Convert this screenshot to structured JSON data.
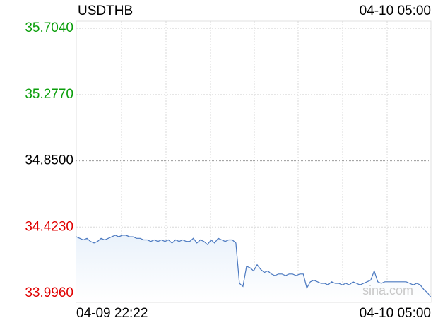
{
  "chart_data": {
    "type": "line",
    "title": "USDTHB",
    "timestamp": "04-10 05:00",
    "watermark": "sina.com",
    "x_labels": [
      "04-09 22:22",
      "04-10 05:00"
    ],
    "color": "#4a78c0",
    "fill": "#eaf2fb",
    "ylim": [
      33.937,
      35.75
    ],
    "yticks": [
      {
        "value": 35.704,
        "label": "35.7040"
      },
      {
        "value": 35.277,
        "label": "35.2770"
      },
      {
        "value": 34.85,
        "label": "34.8500"
      },
      {
        "value": 34.423,
        "label": "34.4230"
      },
      {
        "value": 33.996,
        "label": "33.9960"
      }
    ],
    "ytick_colors": [
      "#0a9e0a",
      "#0a9e0a",
      "#000000",
      "#e00000",
      "#e00000"
    ],
    "grid": true,
    "values": [
      34.36,
      34.35,
      34.34,
      34.35,
      34.33,
      34.32,
      34.33,
      34.35,
      34.34,
      34.35,
      34.36,
      34.37,
      34.36,
      34.37,
      34.37,
      34.36,
      34.36,
      34.35,
      34.35,
      34.34,
      34.34,
      34.33,
      34.34,
      34.33,
      34.34,
      34.33,
      34.34,
      34.32,
      34.34,
      34.33,
      34.34,
      34.33,
      34.33,
      34.35,
      34.32,
      34.34,
      34.33,
      34.31,
      34.34,
      34.32,
      34.35,
      34.34,
      34.33,
      34.34,
      34.34,
      34.32,
      34.06,
      34.04,
      34.17,
      34.16,
      34.14,
      34.18,
      34.15,
      34.13,
      34.14,
      34.12,
      34.11,
      34.12,
      34.12,
      34.11,
      34.12,
      34.12,
      34.11,
      34.12,
      34.12,
      34.03,
      34.07,
      34.08,
      34.07,
      34.06,
      34.06,
      34.05,
      34.07,
      34.06,
      34.06,
      34.05,
      34.06,
      34.05,
      34.07,
      34.06,
      34.05,
      34.06,
      34.07,
      34.08,
      34.14,
      34.07,
      34.06,
      34.07,
      34.07,
      34.07,
      34.07,
      34.07,
      34.07,
      34.07,
      34.06,
      34.05,
      34.06,
      34.05,
      34.02,
      34.0,
      33.97
    ]
  }
}
